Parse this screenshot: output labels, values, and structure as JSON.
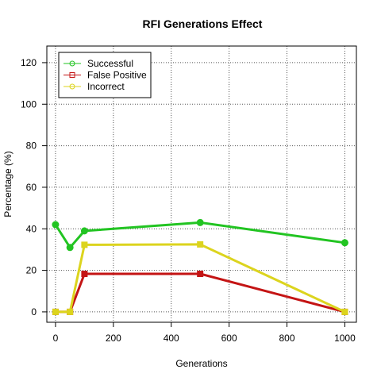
{
  "chart_data": {
    "type": "line",
    "title": "RFI Generations Effect",
    "xlabel": "Generations",
    "ylabel": "Percentage (%)",
    "xlim": [
      -30,
      1040
    ],
    "ylim": [
      -5,
      128
    ],
    "x_ticks": [
      0,
      200,
      400,
      600,
      800,
      1000
    ],
    "y_ticks": [
      0,
      20,
      40,
      60,
      80,
      100,
      120
    ],
    "grid": true,
    "legend_position": "top-left",
    "x": [
      0,
      50,
      100,
      500,
      1000
    ],
    "series": [
      {
        "name": "Successful",
        "color": "#22c422",
        "legend_marker": "circle",
        "values": [
          42,
          31,
          39,
          43,
          33.3
        ]
      },
      {
        "name": "False Positive",
        "color": "#c41414",
        "legend_marker": "square",
        "values": [
          0,
          0,
          18.3,
          18.3,
          0
        ]
      },
      {
        "name": "Incorrect",
        "color": "#dcd41e",
        "legend_marker": "circle",
        "values": [
          0,
          0,
          32.3,
          32.5,
          0
        ]
      }
    ]
  }
}
